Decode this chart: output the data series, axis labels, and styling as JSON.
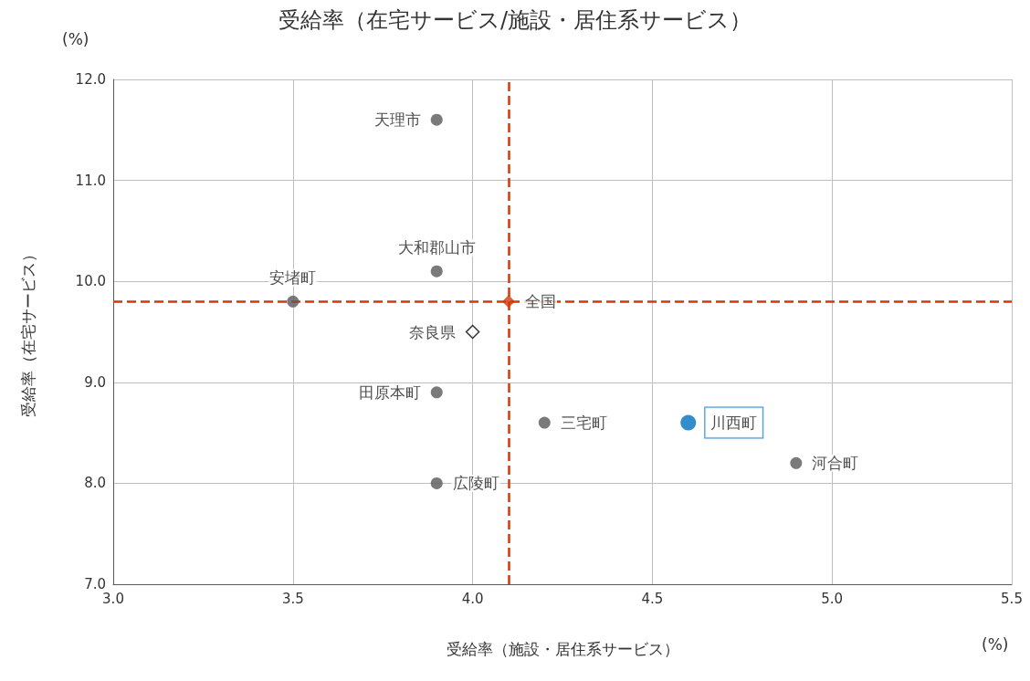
{
  "chart_data": {
    "type": "scatter",
    "title": "受給率（在宅サービス/施設・居住系サービス）",
    "xlabel": "受給率（施設・居住系サービス）",
    "ylabel": "受給率（在宅サービス）",
    "annotations": [
      "(%)",
      "(%)"
    ],
    "xlim": [
      3,
      5.5
    ],
    "xticks": [
      {
        "value": 3,
        "label": "3.0"
      },
      {
        "value": 3.5,
        "label": "3.5"
      },
      {
        "value": 4,
        "label": "4.0"
      },
      {
        "value": 4.5,
        "label": "4.5"
      },
      {
        "value": 5,
        "label": "5.0"
      },
      {
        "value": 5.5,
        "label": "5.5"
      }
    ],
    "ylim": [
      7,
      12
    ],
    "yticks": [
      {
        "value": 7,
        "label": "7.0"
      },
      {
        "value": 8,
        "label": "8.0"
      },
      {
        "value": 9,
        "label": "9.0"
      },
      {
        "value": 10,
        "label": "10.0"
      },
      {
        "value": 11,
        "label": "11.0"
      },
      {
        "value": 12,
        "label": "12.0"
      }
    ],
    "grid": true,
    "legend": false,
    "marker": "circle",
    "ref_lines": [
      {
        "axis": "x",
        "value": 4.1,
        "color": "#d03b0b",
        "line_style": "dashed"
      },
      {
        "axis": "y",
        "value": 9.8,
        "color": "#d03b0b",
        "line_style": "dashed"
      }
    ],
    "series": [
      {
        "name": "天理市",
        "color": "#595959",
        "x": [
          3.9
        ],
        "values": [
          11.6
        ]
      },
      {
        "name": "大和郡山市",
        "color": "#595959",
        "x": [
          3.9
        ],
        "values": [
          10.1
        ]
      },
      {
        "name": "安堵町",
        "color": "#595959",
        "x": [
          3.5
        ],
        "values": [
          9.8
        ]
      },
      {
        "name": "全国",
        "color": "#d03b0b",
        "x": [
          4.1
        ],
        "values": [
          9.8
        ],
        "marker": "diamond"
      },
      {
        "name": "奈良県",
        "color": "#000000",
        "x": [
          4.0
        ],
        "values": [
          9.5
        ],
        "marker": "diamond"
      },
      {
        "name": "田原本町",
        "color": "#595959",
        "x": [
          3.9
        ],
        "values": [
          8.9
        ]
      },
      {
        "name": "三宅町",
        "color": "#595959",
        "x": [
          4.2
        ],
        "values": [
          8.6
        ]
      },
      {
        "name": "川西町",
        "color": "#0070c0",
        "x": [
          4.6
        ],
        "values": [
          8.6
        ]
      },
      {
        "name": "河合町",
        "color": "#595959",
        "x": [
          4.9
        ],
        "values": [
          8.2
        ]
      },
      {
        "name": "広陵町",
        "color": "#595959",
        "x": [
          3.9
        ],
        "values": [
          8.0
        ]
      }
    ]
  }
}
